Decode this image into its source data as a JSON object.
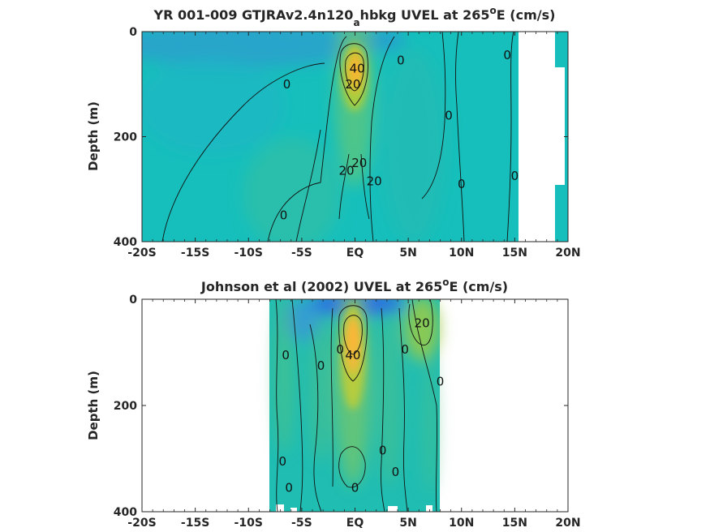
{
  "chart_data": [
    {
      "type": "heatmap",
      "title_main": "YR 001-009 GTJRAv2.4n120",
      "title_sub": "a",
      "title_rest": "hbkg UVEL at 265",
      "title_sup": "o",
      "title_end": "E (cm/s)",
      "ylabel": "Depth (m)",
      "xlabel": "",
      "xlim": [
        -20,
        20
      ],
      "ylim": [
        0,
        400
      ],
      "x_tick_values": [
        -20,
        -15,
        -10,
        -5,
        0,
        5,
        10,
        15,
        20
      ],
      "x_tick_labels": [
        "-20S",
        "-15S",
        "-10S",
        "-5S",
        "EQ",
        "5N",
        "10N",
        "15N",
        "20N"
      ],
      "y_tick_values": [
        0,
        200,
        400
      ],
      "y_tick_labels": [
        "0",
        "200",
        "400"
      ],
      "data_x_range": [
        -20,
        20
      ],
      "colormap": "parula",
      "color_limits": [
        -60,
        60
      ],
      "features": [
        {
          "type": "jet",
          "x": 0.2,
          "depth": 80,
          "peak": 45
        },
        {
          "type": "surface-westward",
          "x": -1,
          "depth": 15,
          "peak": -20
        }
      ],
      "contour_labels": [
        {
          "text": "0",
          "x": -6.4,
          "depth": 100
        },
        {
          "text": "0",
          "x": -6.7,
          "depth": 350
        },
        {
          "text": "0",
          "x": 4.3,
          "depth": 55
        },
        {
          "text": "0",
          "x": 8.8,
          "depth": 160
        },
        {
          "text": "0",
          "x": 10,
          "depth": 290
        },
        {
          "text": "0",
          "x": 14.3,
          "depth": 45
        },
        {
          "text": "0",
          "x": 15,
          "depth": 275
        },
        {
          "text": "20",
          "x": -0.2,
          "depth": 100
        },
        {
          "text": "40",
          "x": 0.2,
          "depth": 70
        },
        {
          "text": "20",
          "x": -0.8,
          "depth": 265
        },
        {
          "text": "20",
          "x": 0.4,
          "depth": 250
        },
        {
          "text": "20",
          "x": 1.8,
          "depth": 285
        }
      ]
    },
    {
      "type": "heatmap",
      "title_main": "Johnson et al (2002) UVEL at 265",
      "title_sup": "o",
      "title_end": "E (cm/s)",
      "ylabel": "Depth (m)",
      "xlabel": "",
      "xlim": [
        -20,
        20
      ],
      "ylim": [
        0,
        400
      ],
      "x_tick_values": [
        -20,
        -15,
        -10,
        -5,
        0,
        5,
        10,
        15,
        20
      ],
      "x_tick_labels": [
        "-20S",
        "-15S",
        "-10S",
        "-5S",
        "EQ",
        "5N",
        "10N",
        "15N",
        "20N"
      ],
      "y_tick_values": [
        0,
        200,
        400
      ],
      "y_tick_labels": [
        "0",
        "200",
        "400"
      ],
      "data_x_range": [
        -8,
        8
      ],
      "colormap": "parula",
      "color_limits": [
        -60,
        60
      ],
      "features": [
        {
          "type": "jet",
          "x": 0,
          "depth": 70,
          "peak": 55
        },
        {
          "type": "surface-westward",
          "x": 0,
          "depth": 10,
          "peak": -40
        },
        {
          "type": "surface-eastward",
          "x": 6.5,
          "depth": 30,
          "peak": 25
        }
      ],
      "contour_labels": [
        {
          "text": "0",
          "x": -6.5,
          "depth": 105
        },
        {
          "text": "0",
          "x": -3.2,
          "depth": 125
        },
        {
          "text": "0",
          "x": 4.7,
          "depth": 95
        },
        {
          "text": "0",
          "x": 8,
          "depth": 155
        },
        {
          "text": "0",
          "x": -6.8,
          "depth": 305
        },
        {
          "text": "0",
          "x": -6.2,
          "depth": 355
        },
        {
          "text": "0",
          "x": 2.6,
          "depth": 285
        },
        {
          "text": "0",
          "x": 3.8,
          "depth": 325
        },
        {
          "text": "0",
          "x": 0,
          "depth": 355
        },
        {
          "text": "20",
          "x": 6.3,
          "depth": 45
        },
        {
          "text": "40",
          "x": -0.2,
          "depth": 105
        },
        {
          "text": "0",
          "x": -1.4,
          "depth": 95
        }
      ]
    }
  ]
}
